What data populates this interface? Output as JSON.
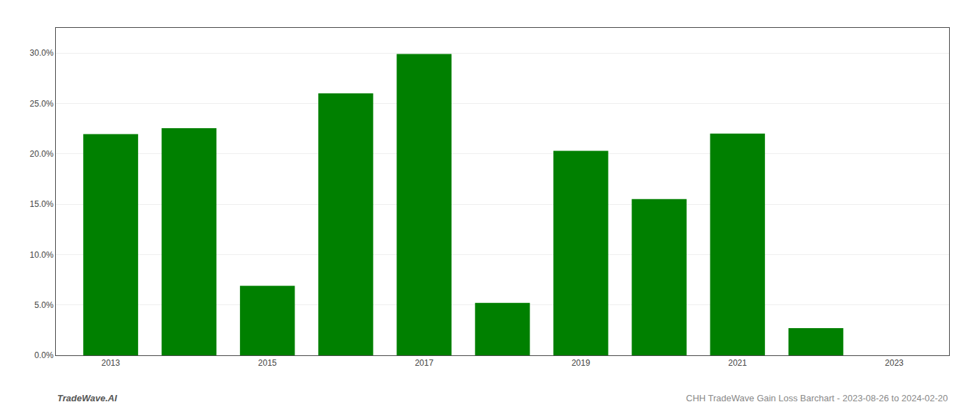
{
  "chart_data": {
    "type": "bar",
    "x": [
      2013,
      2014,
      2015,
      2016,
      2017,
      2018,
      2019,
      2020,
      2021,
      2022
    ],
    "values": [
      0.2195,
      0.2255,
      0.069,
      0.26,
      0.299,
      0.052,
      0.203,
      0.155,
      0.22,
      0.027
    ],
    "color": "#008000",
    "xlim": [
      2012.3,
      2023.7
    ],
    "xticks": [
      2013,
      2015,
      2017,
      2019,
      2021,
      2023
    ],
    "ylim": [
      0.0,
      0.325
    ],
    "yticks": [
      {
        "value": 0.0,
        "label": "0.0%"
      },
      {
        "value": 0.05,
        "label": "5.0%"
      },
      {
        "value": 0.1,
        "label": "10.0%"
      },
      {
        "value": 0.15,
        "label": "15.0%"
      },
      {
        "value": 0.2,
        "label": "20.0%"
      },
      {
        "value": 0.25,
        "label": "25.0%"
      },
      {
        "value": 0.3,
        "label": "30.0%"
      }
    ],
    "grid": true,
    "annotations": [
      "TradeWave.AI",
      "CHH TradeWave Gain Loss Barchart - 2023-08-26 to 2024-02-20"
    ]
  }
}
